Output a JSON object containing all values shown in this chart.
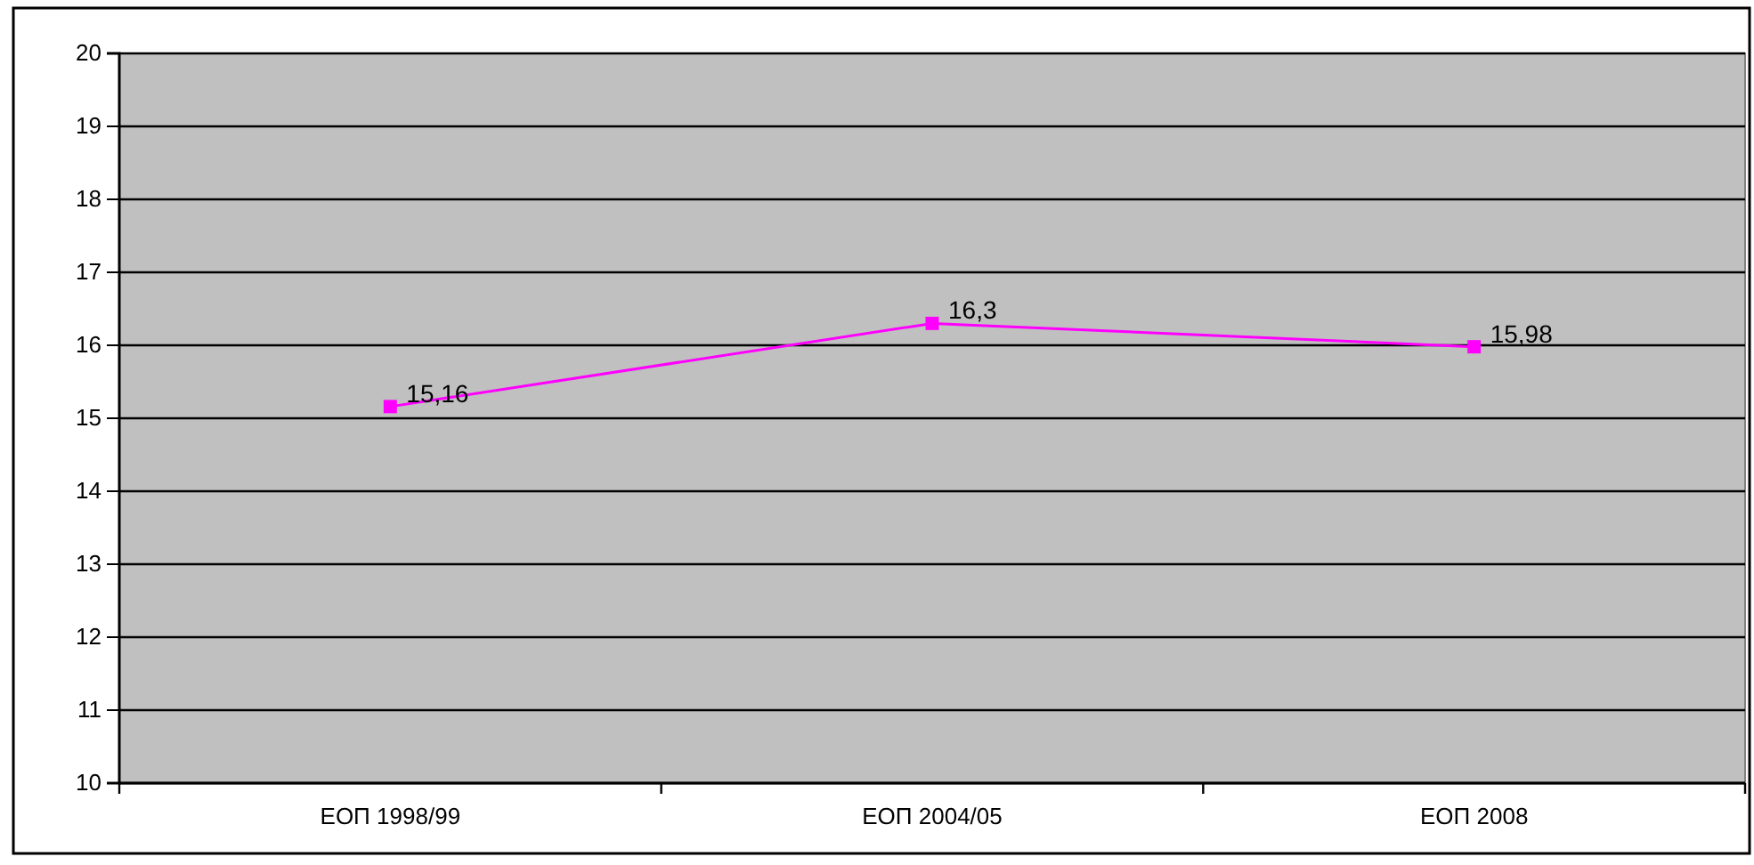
{
  "chart_data": {
    "type": "line",
    "categories": [
      "ΕΟΠ 1998/99",
      "ΕΟΠ 2004/05",
      "ΕΟΠ 2008"
    ],
    "series": [
      {
        "color": "#ff00ff",
        "values": [
          15.16,
          16.3,
          15.98
        ],
        "value_labels": [
          "15,16",
          "16,3",
          "15,98"
        ]
      }
    ],
    "ylim": [
      10,
      20
    ],
    "yticks": [
      10,
      11,
      12,
      13,
      14,
      15,
      16,
      17,
      18,
      19,
      20
    ],
    "grid": "y",
    "marker": "square",
    "line_style": "solid"
  }
}
